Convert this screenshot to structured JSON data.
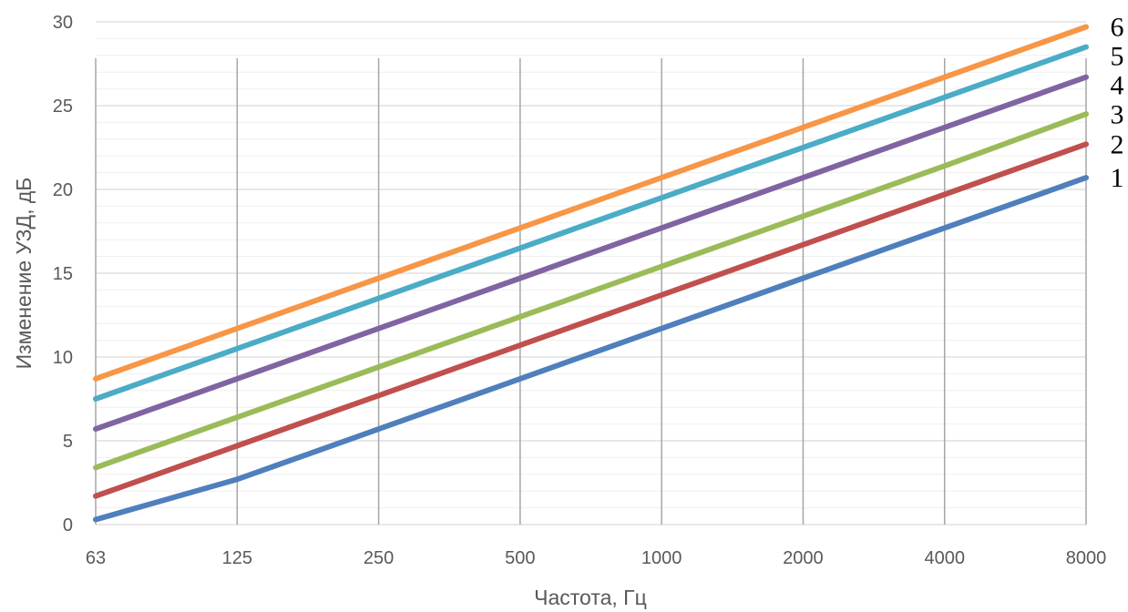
{
  "chart_data": {
    "type": "line",
    "categories": [
      "63",
      "125",
      "250",
      "500",
      "1000",
      "2000",
      "4000",
      "8000"
    ],
    "xlabel": "Частота, Гц",
    "ylabel": "Изменение УЗД, дБ",
    "ylim": [
      0,
      30
    ],
    "yticks": [
      "0",
      "5",
      "10",
      "15",
      "20",
      "25",
      "30"
    ],
    "grid": true,
    "series": [
      {
        "name": "1",
        "color": "#4f7fbc",
        "values": [
          0.3,
          2.7,
          5.7,
          8.7,
          11.7,
          14.7,
          17.7,
          20.7
        ]
      },
      {
        "name": "2",
        "color": "#c0504d",
        "values": [
          1.7,
          4.7,
          7.7,
          10.7,
          13.7,
          16.7,
          19.7,
          22.7
        ]
      },
      {
        "name": "3",
        "color": "#9bbb59",
        "values": [
          3.4,
          6.4,
          9.4,
          12.4,
          15.4,
          18.4,
          21.4,
          24.5
        ]
      },
      {
        "name": "4",
        "color": "#8064a2",
        "values": [
          5.7,
          8.7,
          11.7,
          14.7,
          17.7,
          20.7,
          23.7,
          26.7
        ]
      },
      {
        "name": "5",
        "color": "#4bacc6",
        "values": [
          7.5,
          10.5,
          13.5,
          16.5,
          19.5,
          22.5,
          25.5,
          28.5
        ]
      },
      {
        "name": "6",
        "color": "#f79646",
        "values": [
          8.7,
          11.7,
          14.7,
          17.7,
          20.7,
          23.7,
          26.7,
          29.7
        ]
      }
    ]
  }
}
